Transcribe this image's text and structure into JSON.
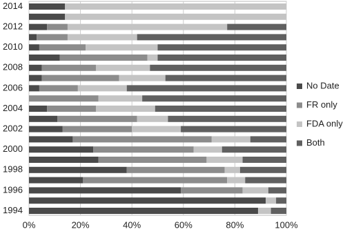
{
  "chart_data": {
    "type": "stacked-bar-horizontal",
    "categories": [
      "1994",
      null,
      "1996",
      null,
      "1998",
      null,
      "2000",
      null,
      "2002",
      null,
      "2004",
      null,
      "2006",
      null,
      "2008",
      null,
      "2010",
      null,
      "2012",
      null,
      "2014"
    ],
    "series": [
      {
        "name": "No Date",
        "color": "#4a4a4a",
        "values": [
          89,
          92,
          59,
          21,
          38,
          27,
          25,
          17,
          13,
          11,
          7,
          0,
          4,
          5,
          5,
          12,
          4,
          3,
          7,
          14,
          14
        ]
      },
      {
        "name": "FR only",
        "color": "#8c8c8c",
        "values": [
          0,
          0,
          24,
          56,
          38,
          42,
          39,
          54,
          27,
          31,
          19,
          27,
          15,
          30,
          21,
          34,
          18,
          12,
          8,
          0,
          0
        ]
      },
      {
        "name": "FDA only",
        "color": "#c4c4c4",
        "values": [
          5,
          4,
          10,
          7,
          6,
          14,
          11,
          15,
          19,
          12,
          23,
          17,
          19,
          18,
          21,
          4,
          28,
          27,
          62,
          86,
          86
        ]
      },
      {
        "name": "Both",
        "color": "#606060",
        "values": [
          6,
          4,
          7,
          16,
          18,
          17,
          25,
          14,
          41,
          46,
          51,
          56,
          62,
          47,
          53,
          50,
          50,
          58,
          23,
          0,
          0
        ]
      }
    ],
    "xlim": [
      0,
      100
    ],
    "xticks": [
      {
        "value": 0,
        "label": "0%"
      },
      {
        "value": 20,
        "label": "20%"
      },
      {
        "value": 40,
        "label": "40%"
      },
      {
        "value": 60,
        "label": "60%"
      },
      {
        "value": 80,
        "label": "80%"
      },
      {
        "value": 100,
        "label": "100%"
      }
    ],
    "grid": true
  }
}
